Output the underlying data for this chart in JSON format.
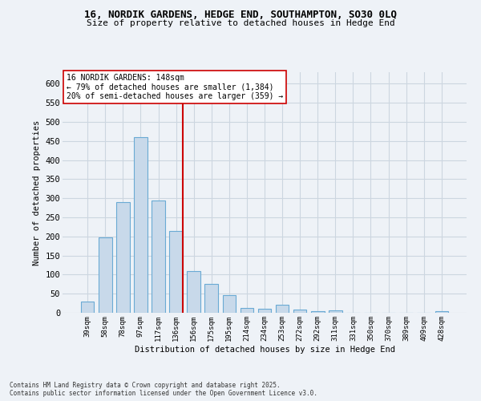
{
  "title_line1": "16, NORDIK GARDENS, HEDGE END, SOUTHAMPTON, SO30 0LQ",
  "title_line2": "Size of property relative to detached houses in Hedge End",
  "xlabel": "Distribution of detached houses by size in Hedge End",
  "ylabel": "Number of detached properties",
  "categories": [
    "39sqm",
    "58sqm",
    "78sqm",
    "97sqm",
    "117sqm",
    "136sqm",
    "156sqm",
    "175sqm",
    "195sqm",
    "214sqm",
    "234sqm",
    "253sqm",
    "272sqm",
    "292sqm",
    "311sqm",
    "331sqm",
    "350sqm",
    "370sqm",
    "389sqm",
    "409sqm",
    "428sqm"
  ],
  "values": [
    30,
    197,
    290,
    460,
    295,
    215,
    110,
    75,
    47,
    13,
    11,
    20,
    9,
    5,
    6,
    0,
    0,
    0,
    0,
    0,
    5
  ],
  "bar_color": "#c8d9ea",
  "bar_edge_color": "#6aaad4",
  "grid_color": "#ccd6e0",
  "vline_index": 5,
  "vline_color": "#cc0000",
  "annotation_text": "16 NORDIK GARDENS: 148sqm\n← 79% of detached houses are smaller (1,384)\n20% of semi-detached houses are larger (359) →",
  "annotation_box_color": "#ffffff",
  "annotation_box_edge_color": "#cc0000",
  "ylim": [
    0,
    630
  ],
  "yticks": [
    0,
    50,
    100,
    150,
    200,
    250,
    300,
    350,
    400,
    450,
    500,
    550,
    600
  ],
  "footnote": "Contains HM Land Registry data © Crown copyright and database right 2025.\nContains public sector information licensed under the Open Government Licence v3.0.",
  "background_color": "#eef2f7"
}
